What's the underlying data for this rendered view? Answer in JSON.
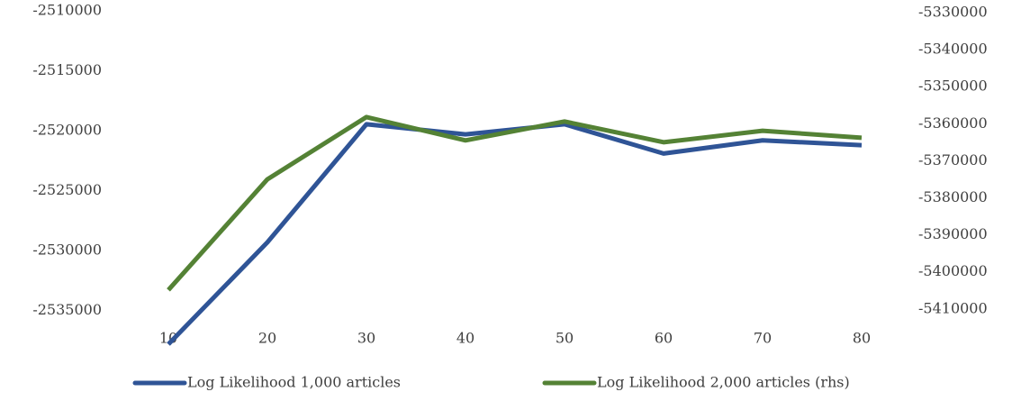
{
  "chart_data": {
    "type": "line",
    "categories": [
      "10",
      "20",
      "30",
      "40",
      "50",
      "60",
      "70",
      "80"
    ],
    "series": [
      {
        "name": "Log Likelihood 1,000 articles",
        "color": "#2f5496",
        "values": [
          -2537800,
          -2529300,
          -2519460,
          -2520300,
          -2519460,
          -2521900,
          -2520800,
          -2521200
        ]
      },
      {
        "name": "Log Likelihood 2,000 articles (rhs)",
        "color": "#548235",
        "axis": "y2",
        "values": [
          -5404900,
          -5375000,
          -5358200,
          -5364500,
          -5359400,
          -5365000,
          -5361900,
          -5363800
        ]
      }
    ],
    "ylim": [
      -2538400,
      -2510000
    ],
    "yticks": [
      -2535000,
      -2530000,
      -2525000,
      -2520000,
      -2515000,
      -2510000
    ],
    "y2lim": [
      -5421500,
      -5329500
    ],
    "y2ticks": [
      -5410000,
      -5400000,
      -5390000,
      -5380000,
      -5370000,
      -5360000,
      -5350000,
      -5340000,
      -5330000
    ],
    "grid": false,
    "legend": "bottom"
  }
}
